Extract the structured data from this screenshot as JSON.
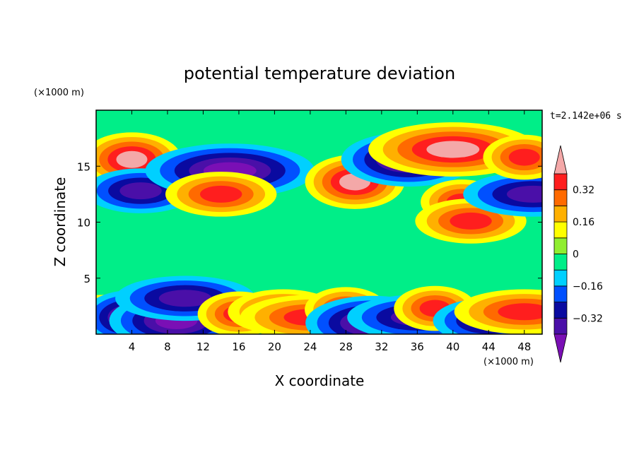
{
  "chart_data": {
    "type": "heatmap",
    "title": "potential temperature deviation",
    "time_label": "t=2.142e+06 s",
    "xlabel": "X coordinate",
    "ylabel": "Z coordinate",
    "x_unit": "(×1000 m)",
    "y_unit": "(×1000 m)",
    "xlim": [
      0,
      50
    ],
    "ylim": [
      0,
      20
    ],
    "x_ticks": [
      4,
      8,
      12,
      16,
      20,
      24,
      28,
      32,
      36,
      40,
      44,
      48
    ],
    "y_ticks": [
      5,
      10,
      15
    ],
    "colorbar": {
      "levels": [
        -0.4,
        -0.32,
        -0.24,
        -0.16,
        -0.08,
        0,
        0.08,
        0.16,
        0.24,
        0.32,
        0.4
      ],
      "labels": [
        "0.32",
        "0.16",
        "0",
        "−0.16",
        "−0.32"
      ],
      "label_values": [
        0.32,
        0.16,
        0,
        -0.16,
        -0.32
      ],
      "colors": [
        "#7a0fb5",
        "#4a0fa8",
        "#0a0aa0",
        "#0050ff",
        "#00d0ff",
        "#00ee88",
        "#90ee30",
        "#ffff00",
        "#ffb000",
        "#ff6a00",
        "#ff1e1e",
        "#f4a8a8"
      ],
      "extend": "both"
    },
    "features": [
      {
        "x": 4,
        "z": 15.6,
        "value": 0.42
      },
      {
        "x": 5,
        "z": 12.8,
        "value": -0.33
      },
      {
        "x": 15,
        "z": 14.6,
        "value": -0.42
      },
      {
        "x": 29,
        "z": 13.6,
        "value": 0.42
      },
      {
        "x": 35,
        "z": 15.6,
        "value": -0.42
      },
      {
        "x": 40,
        "z": 16.5,
        "value": 0.42
      },
      {
        "x": 41,
        "z": 11.8,
        "value": 0.35
      },
      {
        "x": 42,
        "z": 10.1,
        "value": 0.3
      },
      {
        "x": 49,
        "z": 12.5,
        "value": -0.35
      },
      {
        "x": 48,
        "z": 15.8,
        "value": 0.32
      },
      {
        "x": 14,
        "z": 12.5,
        "value": 0.3
      },
      {
        "x": 1,
        "z": 1.5,
        "value": 0.28
      },
      {
        "x": 4,
        "z": 1.5,
        "value": -0.36
      },
      {
        "x": 9,
        "z": 1.2,
        "value": -0.38
      },
      {
        "x": 10,
        "z": 3.2,
        "value": -0.3
      },
      {
        "x": 16,
        "z": 1.8,
        "value": 0.3
      },
      {
        "x": 21,
        "z": 2.0,
        "value": 0.28
      },
      {
        "x": 24,
        "z": 1.5,
        "value": 0.32
      },
      {
        "x": 28,
        "z": 2.2,
        "value": 0.35
      },
      {
        "x": 31,
        "z": 1.0,
        "value": -0.4
      },
      {
        "x": 36,
        "z": 1.5,
        "value": -0.35
      },
      {
        "x": 38,
        "z": 2.3,
        "value": 0.3
      },
      {
        "x": 44,
        "z": 1.2,
        "value": -0.35
      },
      {
        "x": 48,
        "z": 2.0,
        "value": 0.28
      }
    ]
  }
}
